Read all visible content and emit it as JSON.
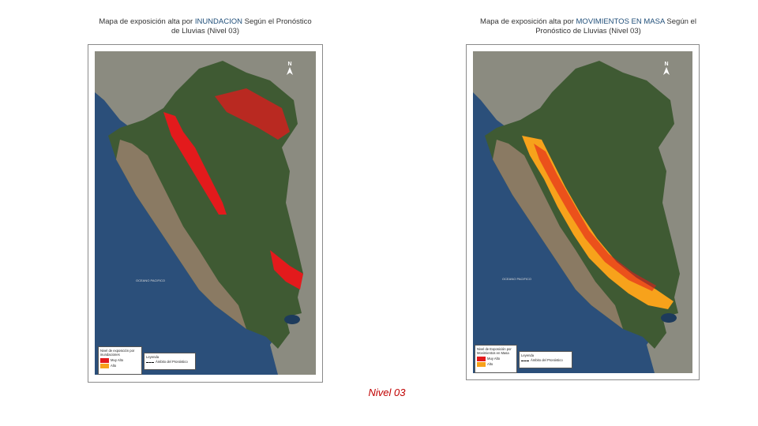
{
  "left_map": {
    "title_prefix": "Mapa de exposición alta por ",
    "title_highlight": "INUNDACION",
    "title_suffix": " Según el Pronóstico de Lluvias (Nivel 03)",
    "legend_title": "Nivel de exposición por inundaciones",
    "legend_items": [
      {
        "label": "Muy Alto",
        "color": "#e31a1c"
      },
      {
        "label": "Alto",
        "color": "#f7a21b"
      }
    ],
    "legend2_title": "Leyenda",
    "legend2_item": "Ámbito del Pronóstico",
    "ocean_label": "OCEANO PACIFICO",
    "north_label": "N"
  },
  "right_map": {
    "title_prefix": "Mapa de exposición alta por ",
    "title_highlight": "MOVIMIENTOS EN MASA",
    "title_suffix": " Según el Pronóstico de Lluvias (Nivel 03)",
    "legend_title": "Nivel de Exposición por Movimientos en Masa",
    "legend_items": [
      {
        "label": "Muy Alto",
        "color": "#e31a1c"
      },
      {
        "label": "Alto",
        "color": "#f7a21b"
      }
    ],
    "legend2_title": "Leyenda",
    "legend2_item": "Ámbito del Pronóstico",
    "ocean_label": "OCEANO PACIFICO",
    "north_label": "N"
  },
  "footer": {
    "label": "Nivel 03"
  },
  "colors": {
    "ocean": "#2b4f7a",
    "land_forest": "#3f5a33",
    "land_coast": "#8a7a63",
    "neighbor": "#8b8b80",
    "high": "#e31a1c",
    "very_high_orange": "#f7a21b"
  }
}
